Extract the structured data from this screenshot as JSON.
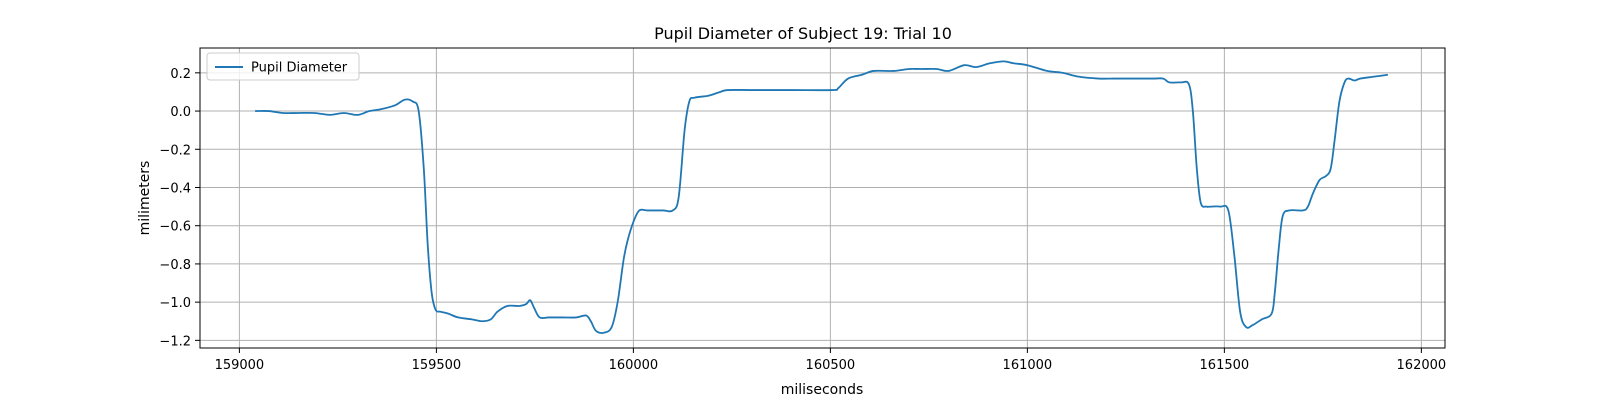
{
  "chart_data": {
    "type": "line",
    "title": "Pupil Diameter of Subject 19: Trial 10",
    "xlabel": "miliseconds",
    "ylabel": "milimeters",
    "xlim": [
      158900,
      162060
    ],
    "ylim": [
      -1.24,
      0.33
    ],
    "xticks": [
      159000,
      159500,
      160000,
      160500,
      161000,
      161500,
      162000
    ],
    "yticks": [
      -1.2,
      -1.0,
      -0.8,
      -0.6,
      -0.4,
      -0.2,
      0.0,
      0.2
    ],
    "grid": true,
    "legend": {
      "position": "upper-left"
    },
    "colors": {
      "series": "#1f77b4",
      "grid": "#b0b0b0"
    },
    "series": [
      {
        "name": "Pupil Diameter",
        "x": [
          159040,
          159075,
          159110,
          159150,
          159190,
          159230,
          159265,
          159300,
          159330,
          159360,
          159395,
          159420,
          159440,
          159455,
          159468,
          159478,
          159488,
          159498,
          159510,
          159530,
          159555,
          159590,
          159615,
          159638,
          159655,
          159680,
          159710,
          159728,
          159738,
          159748,
          159762,
          159785,
          159820,
          159855,
          159880,
          159892,
          159905,
          159925,
          159945,
          159960,
          159975,
          159985,
          160000,
          160015,
          160035,
          160075,
          160100,
          160115,
          160130,
          160142,
          160155,
          160190,
          160220,
          160240,
          160300,
          160400,
          160505,
          160520,
          160545,
          160580,
          160610,
          160660,
          160700,
          160730,
          160770,
          160800,
          160840,
          160870,
          160905,
          160940,
          160965,
          161000,
          161050,
          161090,
          161130,
          161180,
          161220,
          161260,
          161290,
          161320,
          161345,
          161360,
          161390,
          161410,
          161420,
          161430,
          161440,
          161455,
          161465,
          161490,
          161510,
          161525,
          161540,
          161555,
          161572,
          161595,
          161620,
          161628,
          161638,
          161648,
          161665,
          161700,
          161712,
          161725,
          161742,
          161758,
          161770,
          161780,
          161792,
          161805,
          161815,
          161830,
          161845,
          161880,
          161915
        ],
        "values": [
          0.0,
          0.0,
          -0.01,
          -0.01,
          -0.01,
          -0.02,
          -0.01,
          -0.02,
          0.0,
          0.01,
          0.03,
          0.06,
          0.05,
          0.0,
          -0.3,
          -0.7,
          -0.95,
          -1.04,
          -1.05,
          -1.06,
          -1.08,
          -1.09,
          -1.1,
          -1.09,
          -1.05,
          -1.02,
          -1.02,
          -1.01,
          -0.99,
          -1.03,
          -1.08,
          -1.08,
          -1.08,
          -1.08,
          -1.07,
          -1.1,
          -1.15,
          -1.16,
          -1.13,
          -1.0,
          -0.78,
          -0.68,
          -0.58,
          -0.52,
          -0.52,
          -0.52,
          -0.52,
          -0.45,
          -0.1,
          0.05,
          0.07,
          0.08,
          0.1,
          0.11,
          0.11,
          0.11,
          0.11,
          0.12,
          0.17,
          0.19,
          0.21,
          0.21,
          0.22,
          0.22,
          0.22,
          0.21,
          0.24,
          0.23,
          0.25,
          0.26,
          0.25,
          0.24,
          0.21,
          0.2,
          0.18,
          0.17,
          0.17,
          0.17,
          0.17,
          0.17,
          0.17,
          0.15,
          0.15,
          0.14,
          0.0,
          -0.3,
          -0.48,
          -0.5,
          -0.5,
          -0.5,
          -0.52,
          -0.75,
          -1.05,
          -1.13,
          -1.12,
          -1.09,
          -1.06,
          -0.95,
          -0.72,
          -0.55,
          -0.52,
          -0.52,
          -0.5,
          -0.43,
          -0.36,
          -0.34,
          -0.3,
          -0.15,
          0.05,
          0.15,
          0.17,
          0.16,
          0.17,
          0.18,
          0.19
        ]
      }
    ]
  }
}
